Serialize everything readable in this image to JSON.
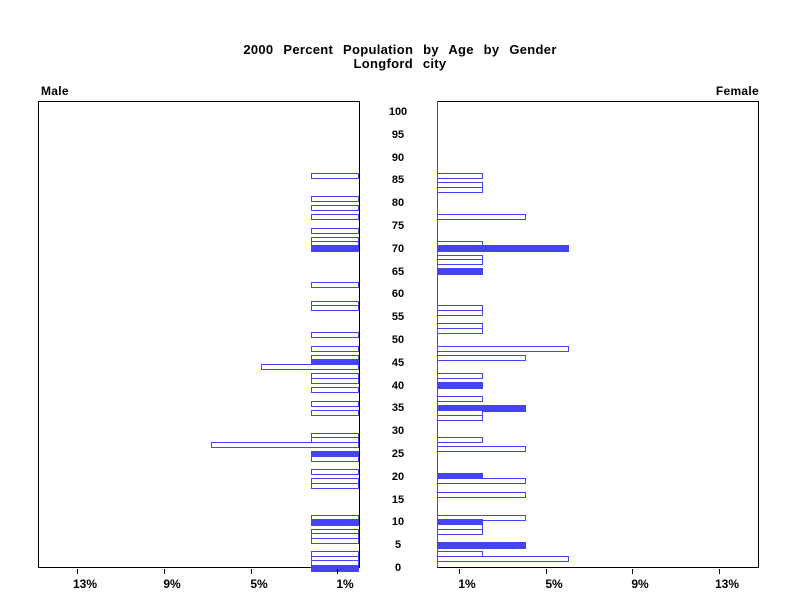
{
  "title": {
    "line1": "2000 Percent Population by Age by Gender",
    "line2": "Longford city"
  },
  "panels": {
    "left_label": "Male",
    "right_label": "Female"
  },
  "colors": {
    "bar_blue": "#4444f2",
    "axis_black": "#000000",
    "background": "#ffffff"
  },
  "chart_data": {
    "type": "bar",
    "variant": "population-pyramid",
    "title": "2000 Percent Population by Age by Gender",
    "subtitle": "Longford city",
    "legend": "none",
    "grid": false,
    "bar_style": {
      "hollow_fill": "#ffffff",
      "outline": "#4444f2",
      "highlight_fill": "#4444f2",
      "highlight_note": "solid bars at ages divisible by 5"
    },
    "age_axis": {
      "min": 0,
      "max": 100,
      "step": 5,
      "tick_labels": [
        "0",
        "5",
        "10",
        "15",
        "20",
        "25",
        "30",
        "35",
        "40",
        "45",
        "50",
        "55",
        "60",
        "65",
        "70",
        "75",
        "80",
        "85",
        "90",
        "95",
        "100"
      ]
    },
    "x_axis": {
      "unit": "percent",
      "pct_max": 14.8,
      "ticks_left": [
        {
          "label": "13%",
          "pct": 13
        },
        {
          "label": "9%",
          "pct": 9
        },
        {
          "label": "5%",
          "pct": 5
        },
        {
          "label": "1%",
          "pct": 1
        }
      ],
      "ticks_right": [
        {
          "label": "1%",
          "pct": 1
        },
        {
          "label": "5%",
          "pct": 5
        },
        {
          "label": "9%",
          "pct": 9
        },
        {
          "label": "13%",
          "pct": 13
        }
      ]
    },
    "series": [
      {
        "name": "Male",
        "side": "left",
        "bars": [
          {
            "age": 86,
            "pct": 2.2,
            "filled": false
          },
          {
            "age": 81,
            "pct": 2.2,
            "filled": false
          },
          {
            "age": 79,
            "pct": 2.2,
            "filled": false
          },
          {
            "age": 77,
            "pct": 2.2,
            "filled": false
          },
          {
            "age": 74,
            "pct": 2.2,
            "filled": false
          },
          {
            "age": 72,
            "pct": 2.2,
            "filled": false
          },
          {
            "age": 71,
            "pct": 2.2,
            "filled": false
          },
          {
            "age": 70,
            "pct": 2.2,
            "filled": true
          },
          {
            "age": 62,
            "pct": 2.2,
            "filled": false
          },
          {
            "age": 58,
            "pct": 2.2,
            "filled": false
          },
          {
            "age": 57,
            "pct": 2.2,
            "filled": false
          },
          {
            "age": 51,
            "pct": 2.2,
            "filled": false
          },
          {
            "age": 48,
            "pct": 2.2,
            "filled": false
          },
          {
            "age": 46,
            "pct": 2.2,
            "filled": false
          },
          {
            "age": 45,
            "pct": 2.2,
            "filled": true
          },
          {
            "age": 44,
            "pct": 4.5,
            "filled": false
          },
          {
            "age": 42,
            "pct": 2.2,
            "filled": false
          },
          {
            "age": 41,
            "pct": 2.2,
            "filled": false
          },
          {
            "age": 39,
            "pct": 2.2,
            "filled": false
          },
          {
            "age": 36,
            "pct": 2.2,
            "filled": false
          },
          {
            "age": 34,
            "pct": 2.2,
            "filled": false
          },
          {
            "age": 29,
            "pct": 2.2,
            "filled": false
          },
          {
            "age": 28,
            "pct": 2.2,
            "filled": false
          },
          {
            "age": 27,
            "pct": 6.8,
            "filled": false
          },
          {
            "age": 25,
            "pct": 2.2,
            "filled": true
          },
          {
            "age": 24,
            "pct": 2.2,
            "filled": false
          },
          {
            "age": 21,
            "pct": 2.2,
            "filled": false
          },
          {
            "age": 19,
            "pct": 2.2,
            "filled": false
          },
          {
            "age": 18,
            "pct": 2.2,
            "filled": false
          },
          {
            "age": 11,
            "pct": 2.2,
            "filled": false
          },
          {
            "age": 10,
            "pct": 2.2,
            "filled": true
          },
          {
            "age": 8,
            "pct": 2.2,
            "filled": false
          },
          {
            "age": 7,
            "pct": 2.2,
            "filled": false
          },
          {
            "age": 6,
            "pct": 2.2,
            "filled": false
          },
          {
            "age": 3,
            "pct": 2.2,
            "filled": false
          },
          {
            "age": 2,
            "pct": 2.2,
            "filled": false
          },
          {
            "age": 1,
            "pct": 2.2,
            "filled": false
          },
          {
            "age": 0,
            "pct": 2.2,
            "filled": true
          }
        ]
      },
      {
        "name": "Female",
        "side": "right",
        "bars": [
          {
            "age": 86,
            "pct": 2.1,
            "filled": false
          },
          {
            "age": 84,
            "pct": 2.1,
            "filled": false
          },
          {
            "age": 83,
            "pct": 2.1,
            "filled": false
          },
          {
            "age": 77,
            "pct": 4.1,
            "filled": false
          },
          {
            "age": 71,
            "pct": 2.1,
            "filled": false
          },
          {
            "age": 70,
            "pct": 6.1,
            "filled": true
          },
          {
            "age": 68,
            "pct": 2.1,
            "filled": false
          },
          {
            "age": 67,
            "pct": 2.1,
            "filled": false
          },
          {
            "age": 65,
            "pct": 2.1,
            "filled": true
          },
          {
            "age": 57,
            "pct": 2.1,
            "filled": false
          },
          {
            "age": 56,
            "pct": 2.1,
            "filled": false
          },
          {
            "age": 53,
            "pct": 2.1,
            "filled": false
          },
          {
            "age": 52,
            "pct": 2.1,
            "filled": false
          },
          {
            "age": 48,
            "pct": 6.1,
            "filled": false
          },
          {
            "age": 46,
            "pct": 4.1,
            "filled": false
          },
          {
            "age": 42,
            "pct": 2.1,
            "filled": false
          },
          {
            "age": 40,
            "pct": 2.1,
            "filled": true
          },
          {
            "age": 37,
            "pct": 2.1,
            "filled": false
          },
          {
            "age": 35,
            "pct": 4.1,
            "filled": true
          },
          {
            "age": 34,
            "pct": 2.1,
            "filled": false
          },
          {
            "age": 33,
            "pct": 2.1,
            "filled": false
          },
          {
            "age": 28,
            "pct": 2.1,
            "filled": false
          },
          {
            "age": 26,
            "pct": 4.1,
            "filled": false
          },
          {
            "age": 20,
            "pct": 2.1,
            "filled": true
          },
          {
            "age": 19,
            "pct": 4.1,
            "filled": false
          },
          {
            "age": 16,
            "pct": 4.1,
            "filled": false
          },
          {
            "age": 11,
            "pct": 4.1,
            "filled": false
          },
          {
            "age": 10,
            "pct": 2.1,
            "filled": true
          },
          {
            "age": 9,
            "pct": 2.1,
            "filled": false
          },
          {
            "age": 8,
            "pct": 2.1,
            "filled": false
          },
          {
            "age": 5,
            "pct": 4.1,
            "filled": true
          },
          {
            "age": 3,
            "pct": 2.1,
            "filled": false
          },
          {
            "age": 2,
            "pct": 6.1,
            "filled": false
          }
        ]
      }
    ]
  }
}
